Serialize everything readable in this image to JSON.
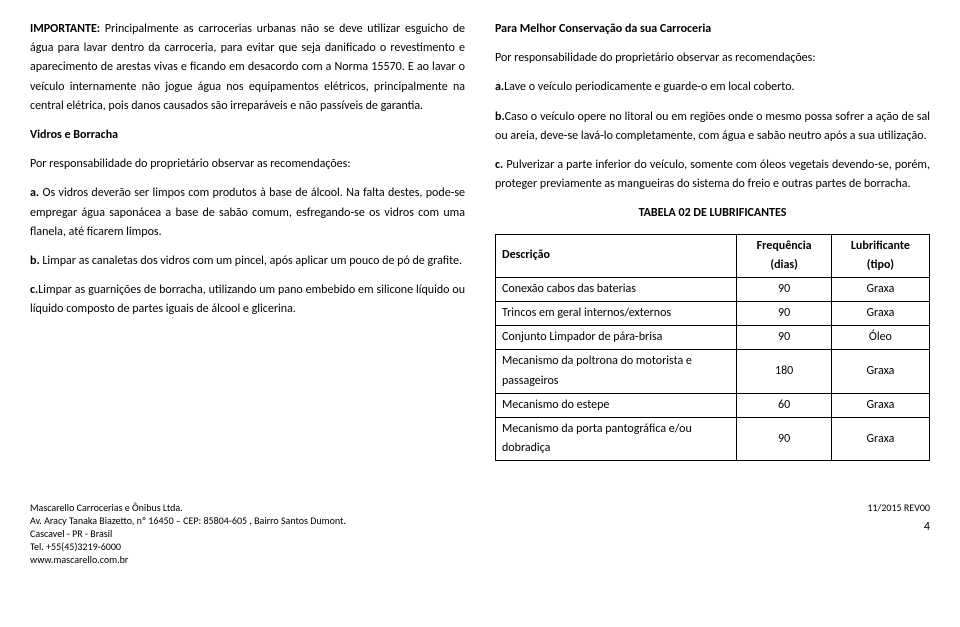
{
  "left": {
    "p1_bold": "IMPORTANTE:",
    "p1": " Principalmente as carrocerias urbanas não se deve utilizar esguicho de água para lavar dentro da carroceria, para evitar que seja danificado o revestimento e aparecimento de arestas vivas e ficando em desacordo com a Norma 15570. E ao lavar o veículo internamente não jogue água nos equipamentos elétricos, principalmente na central elétrica, pois danos causados são irreparáveis e não passíveis de garantia.",
    "h1": "Vidros e Borracha",
    "p2": "Por responsabilidade do proprietário observar as recomendações:",
    "p3_bold": "a.",
    "p3": " Os vidros deverão ser limpos com produtos à base de álcool. Na falta destes, pode-se empregar água saponácea a base de sabão comum, esfregando-se os vidros com uma flanela, até ficarem limpos.",
    "p4_bold": "b.",
    "p4": " Limpar as canaletas dos vidros com um pincel, após aplicar um pouco de pó de grafite.",
    "p5_bold": "c.",
    "p5": "Limpar as guarnições de borracha, utilizando um pano embebido em silicone líquido ou líquido composto de partes iguais de álcool e glicerina."
  },
  "right": {
    "h1": "Para Melhor Conservação da sua Carroceria",
    "p1": "Por responsabilidade do proprietário observar as recomendações:",
    "p2_bold": "a.",
    "p2": "Lave o veículo periodicamente e guarde-o em local coberto.",
    "p3_bold": "b.",
    "p3": "Caso o veículo opere no litoral ou em regiões onde o mesmo possa sofrer a ação de sal ou areia, deve-se lavá-lo completamente, com água e sabão neutro após a sua utilização.",
    "p4_bold": "c.",
    "p4": " Pulverizar a parte inferior do veículo, somente com óleos vegetais devendo-se, porém, proteger previamente as mangueiras do sistema do freio e outras partes de borracha.",
    "table_title": "TABELA 02 DE LUBRIFICANTES"
  },
  "table": {
    "headers": [
      "Descrição",
      "Frequência (dias)",
      "Lubrificante (tipo)"
    ],
    "rows": [
      [
        "Conexão cabos das baterias",
        "90",
        "Graxa"
      ],
      [
        "Trincos em geral internos/externos",
        "90",
        "Graxa"
      ],
      [
        "Conjunto Limpador de pára-brisa",
        "90",
        "Óleo"
      ],
      [
        "Mecanismo da poltrona do motorista e passageiros",
        "180",
        "Graxa"
      ],
      [
        "Mecanismo do estepe",
        "60",
        "Graxa"
      ],
      [
        "Mecanismo da porta pantográfica e/ou dobradiça",
        "90",
        "Graxa"
      ]
    ]
  },
  "footer": {
    "l1": "Mascarello Carrocerias e Ônibus Ltda.",
    "l2": "Av. Aracy Tanaka Biazetto, nº 16450 – CEP: 85804-605 , Bairro Santos Dumont.",
    "l3": "Cascavel - PR - Brasil",
    "l4": "Tel. +55(45)3219-6000",
    "l5": "www.mascarello.com.br",
    "rev": "11/2015 REV00",
    "page": "4"
  }
}
